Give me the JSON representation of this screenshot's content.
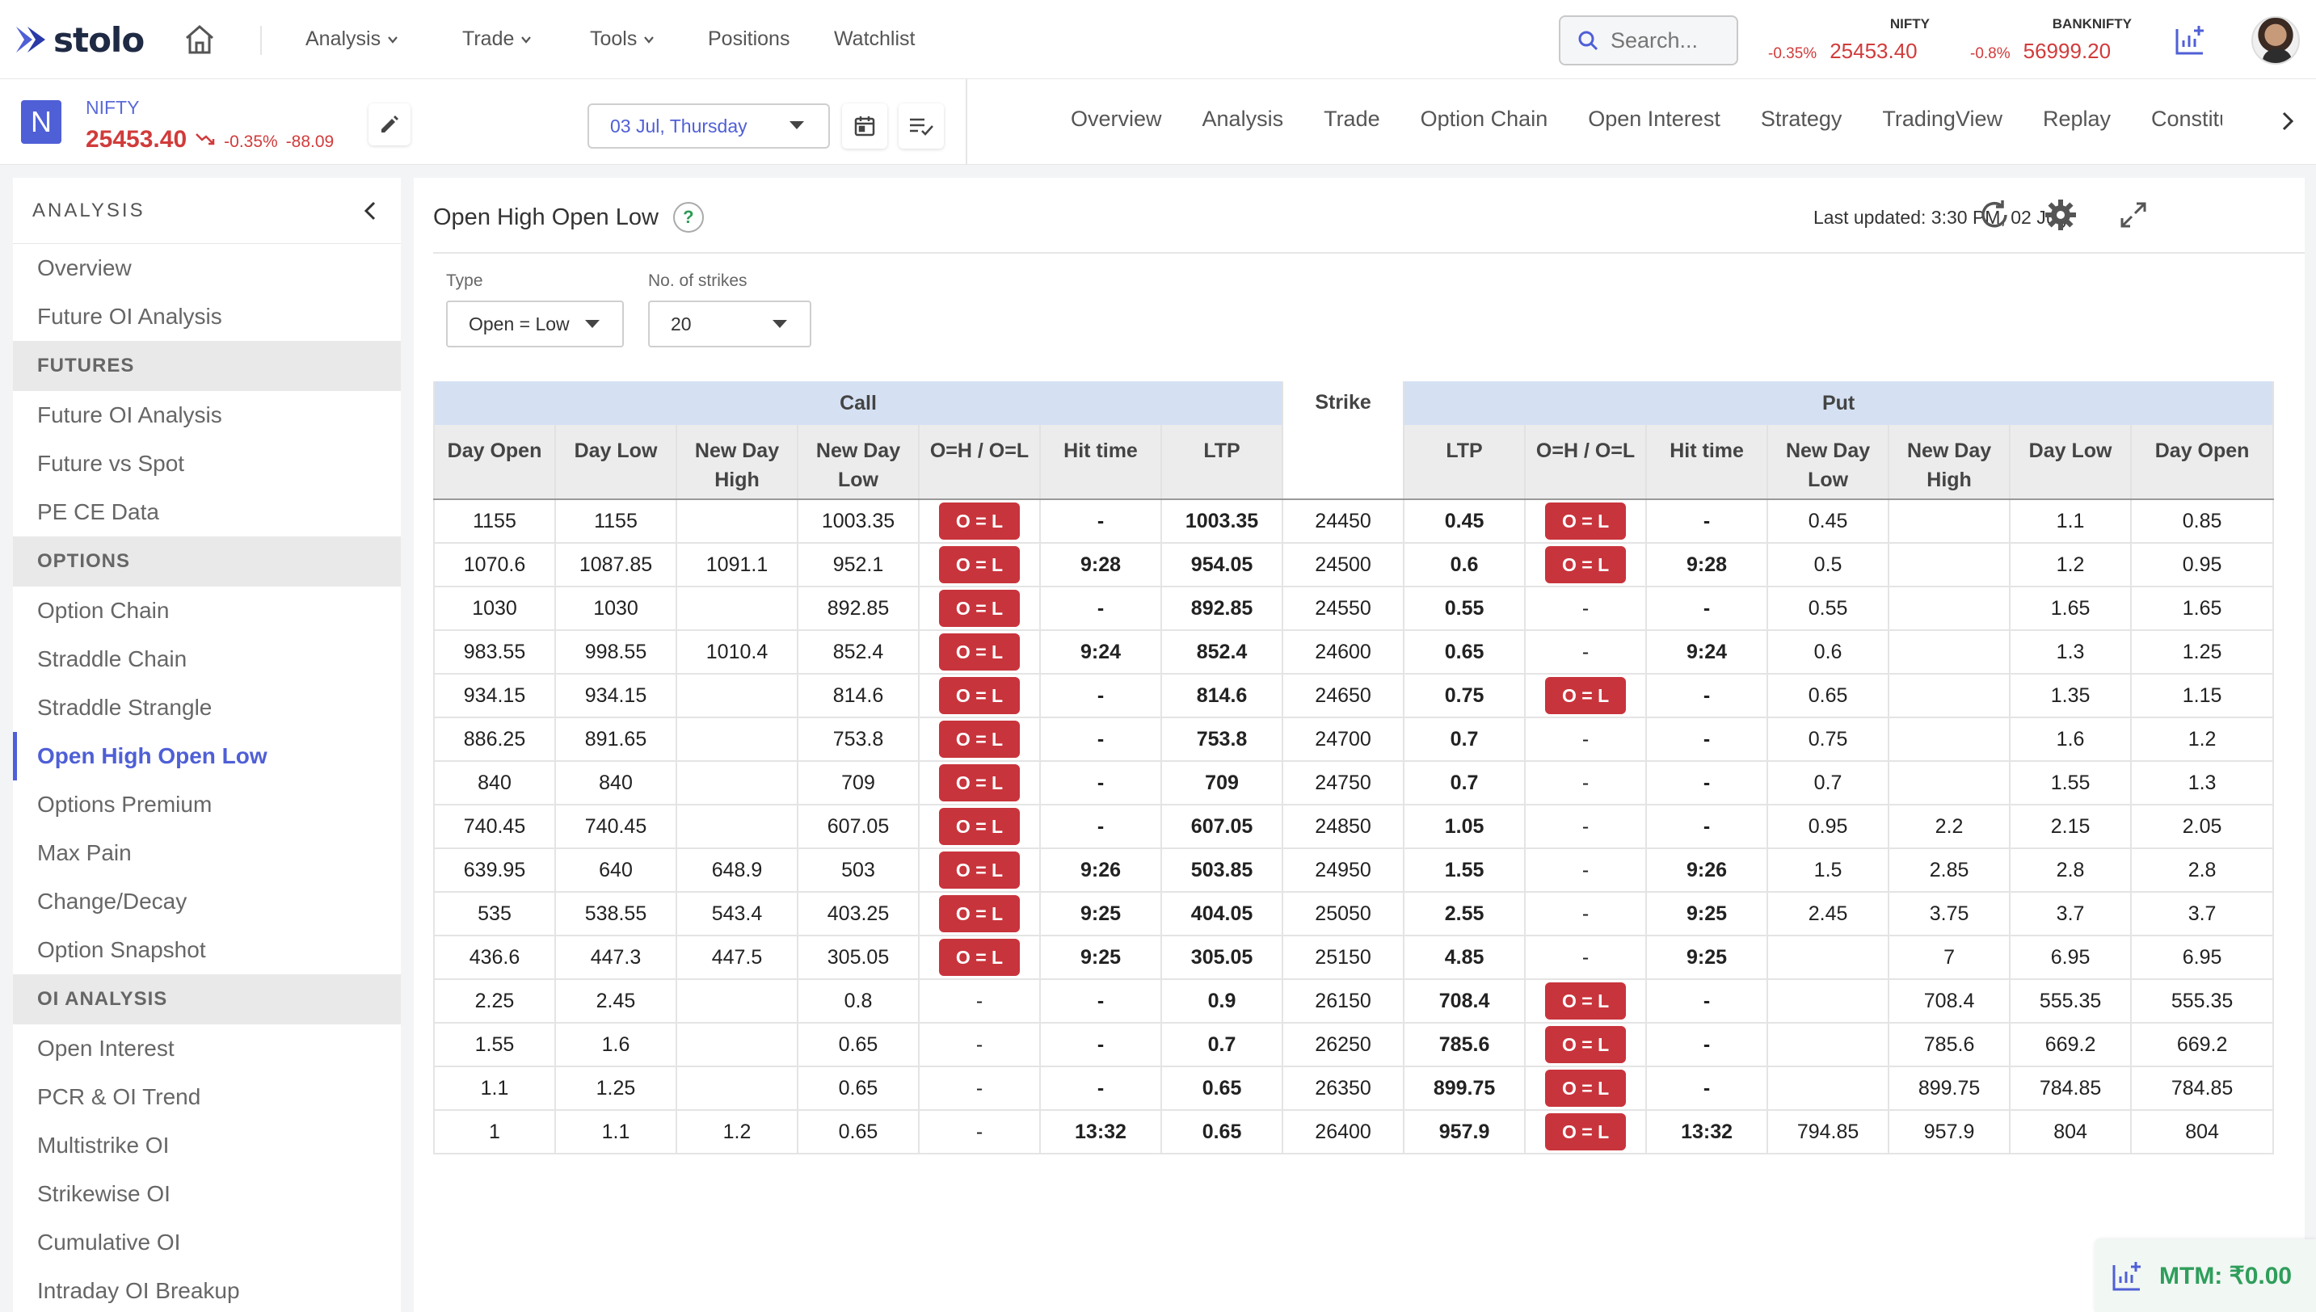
{
  "app": {
    "logo_text": "stolo"
  },
  "nav": {
    "menus": [
      {
        "label": "Analysis",
        "has_dropdown": true
      },
      {
        "label": "Trade",
        "has_dropdown": true
      },
      {
        "label": "Tools",
        "has_dropdown": true
      },
      {
        "label": "Positions",
        "has_dropdown": false
      },
      {
        "label": "Watchlist",
        "has_dropdown": false
      }
    ],
    "search_placeholder": "Search..."
  },
  "indices": [
    {
      "name": "NIFTY",
      "change_pct": "-0.35%",
      "value": "25453.40"
    },
    {
      "name": "BANKNIFTY",
      "change_pct": "-0.8%",
      "value": "56999.20"
    }
  ],
  "symbol": {
    "badge": "N",
    "name": "NIFTY",
    "price": "25453.40",
    "change_pct": "-0.35%",
    "change_abs": "-88.09",
    "expiry": "03 Jul, Thursday"
  },
  "tabs": [
    "Overview",
    "Analysis",
    "Trade",
    "Option Chain",
    "Open Interest",
    "Strategy",
    "TradingView",
    "Replay",
    "Constituents"
  ],
  "sidebar": {
    "title": "ANALYSIS",
    "groups": [
      {
        "section": null,
        "items": [
          "Overview",
          "Future OI Analysis"
        ]
      },
      {
        "section": "FUTURES",
        "items": [
          "Future OI Analysis",
          "Future vs Spot",
          "PE CE Data"
        ]
      },
      {
        "section": "OPTIONS",
        "items": [
          "Option Chain",
          "Straddle Chain",
          "Straddle Strangle",
          "Open High Open Low",
          "Options Premium",
          "Max Pain",
          "Change/Decay",
          "Option Snapshot"
        ]
      },
      {
        "section": "OI ANALYSIS",
        "items": [
          "Open Interest",
          "PCR & OI Trend",
          "Multistrike OI",
          "Strikewise OI",
          "Cumulative OI",
          "Intraday OI Breakup"
        ]
      }
    ],
    "active_item": "Open High Open Low"
  },
  "panel": {
    "title": "Open High Open Low",
    "help": "?",
    "last_updated": "Last updated: 3:30 PM, 02 July",
    "filters": {
      "type_label": "Type",
      "type_value": "Open = Low",
      "strikes_label": "No. of strikes",
      "strikes_value": "20"
    }
  },
  "table": {
    "call_group": "Call",
    "put_group": "Put",
    "strike_header": "Strike",
    "call_columns": [
      "Day Open",
      "Day Low",
      "New Day High",
      "New Day Low",
      "O=H / O=L",
      "Hit time",
      "LTP"
    ],
    "put_columns": [
      "LTP",
      "O=H / O=L",
      "Hit time",
      "New Day Low",
      "New Day High",
      "Day Low",
      "Day Open"
    ],
    "rows": [
      {
        "c": [
          "1155",
          "1155",
          "",
          "1003.35",
          "O = L",
          "-",
          "1003.35"
        ],
        "strike": "24450",
        "p": [
          "0.45",
          "O = L",
          "-",
          "0.45",
          "",
          "1.1",
          "0.85"
        ]
      },
      {
        "c": [
          "1070.6",
          "1087.85",
          "1091.1",
          "952.1",
          "O = L",
          "9:28",
          "954.05"
        ],
        "strike": "24500",
        "p": [
          "0.6",
          "O = L",
          "9:28",
          "0.5",
          "",
          "1.2",
          "0.95"
        ]
      },
      {
        "c": [
          "1030",
          "1030",
          "",
          "892.85",
          "O = L",
          "-",
          "892.85"
        ],
        "strike": "24550",
        "p": [
          "0.55",
          "-",
          "-",
          "0.55",
          "",
          "1.65",
          "1.65"
        ]
      },
      {
        "c": [
          "983.55",
          "998.55",
          "1010.4",
          "852.4",
          "O = L",
          "9:24",
          "852.4"
        ],
        "strike": "24600",
        "p": [
          "0.65",
          "-",
          "9:24",
          "0.6",
          "",
          "1.3",
          "1.25"
        ]
      },
      {
        "c": [
          "934.15",
          "934.15",
          "",
          "814.6",
          "O = L",
          "-",
          "814.6"
        ],
        "strike": "24650",
        "p": [
          "0.75",
          "O = L",
          "-",
          "0.65",
          "",
          "1.35",
          "1.15"
        ]
      },
      {
        "c": [
          "886.25",
          "891.65",
          "",
          "753.8",
          "O = L",
          "-",
          "753.8"
        ],
        "strike": "24700",
        "p": [
          "0.7",
          "-",
          "-",
          "0.75",
          "",
          "1.6",
          "1.2"
        ]
      },
      {
        "c": [
          "840",
          "840",
          "",
          "709",
          "O = L",
          "-",
          "709"
        ],
        "strike": "24750",
        "p": [
          "0.7",
          "-",
          "-",
          "0.7",
          "",
          "1.55",
          "1.3"
        ]
      },
      {
        "c": [
          "740.45",
          "740.45",
          "",
          "607.05",
          "O = L",
          "-",
          "607.05"
        ],
        "strike": "24850",
        "p": [
          "1.05",
          "-",
          "-",
          "0.95",
          "2.2",
          "2.15",
          "2.05"
        ]
      },
      {
        "c": [
          "639.95",
          "640",
          "648.9",
          "503",
          "O = L",
          "9:26",
          "503.85"
        ],
        "strike": "24950",
        "p": [
          "1.55",
          "-",
          "9:26",
          "1.5",
          "2.85",
          "2.8",
          "2.8"
        ]
      },
      {
        "c": [
          "535",
          "538.55",
          "543.4",
          "403.25",
          "O = L",
          "9:25",
          "404.05"
        ],
        "strike": "25050",
        "p": [
          "2.55",
          "-",
          "9:25",
          "2.45",
          "3.75",
          "3.7",
          "3.7"
        ]
      },
      {
        "c": [
          "436.6",
          "447.3",
          "447.5",
          "305.05",
          "O = L",
          "9:25",
          "305.05"
        ],
        "strike": "25150",
        "p": [
          "4.85",
          "-",
          "9:25",
          "",
          "7",
          "6.95",
          "6.95"
        ]
      },
      {
        "c": [
          "2.25",
          "2.45",
          "",
          "0.8",
          "-",
          "-",
          "0.9"
        ],
        "strike": "26150",
        "p": [
          "708.4",
          "O = L",
          "-",
          "",
          "708.4",
          "555.35",
          "555.35"
        ]
      },
      {
        "c": [
          "1.55",
          "1.6",
          "",
          "0.65",
          "-",
          "-",
          "0.7"
        ],
        "strike": "26250",
        "p": [
          "785.6",
          "O = L",
          "-",
          "",
          "785.6",
          "669.2",
          "669.2"
        ]
      },
      {
        "c": [
          "1.1",
          "1.25",
          "",
          "0.65",
          "-",
          "-",
          "0.65"
        ],
        "strike": "26350",
        "p": [
          "899.75",
          "O = L",
          "-",
          "",
          "899.75",
          "784.85",
          "784.85"
        ]
      },
      {
        "c": [
          "1",
          "1.1",
          "1.2",
          "0.65",
          "-",
          "13:32",
          "0.65"
        ],
        "strike": "26400",
        "p": [
          "957.9",
          "O = L",
          "13:32",
          "794.85",
          "957.9",
          "804",
          "804"
        ]
      }
    ]
  },
  "mtm": {
    "label": "MTM: ₹0.00"
  },
  "colors": {
    "accent": "#4f5fd6",
    "negative": "#d13b3b",
    "badge": "#c8343c",
    "positive": "#2f9e5b",
    "group_header": "#d5e1f3"
  }
}
